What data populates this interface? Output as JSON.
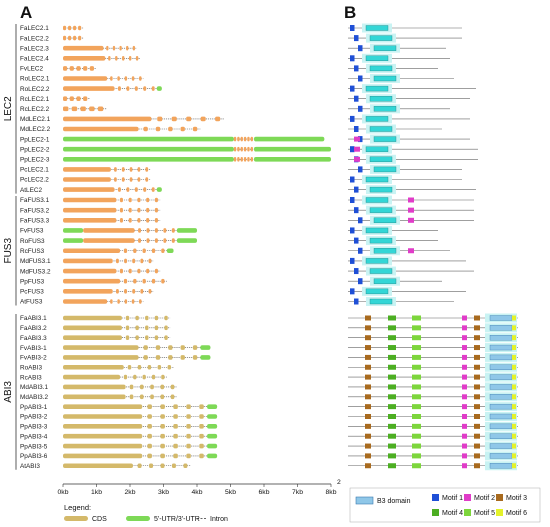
{
  "panel_a_label": "A",
  "panel_b_label": "B",
  "axis_ticks": [
    "0kb",
    "1kb",
    "2kb",
    "3kb",
    "4kb",
    "5kb",
    "6kb",
    "7kb",
    "8kb"
  ],
  "axis_end_mark": "2",
  "legend_a": {
    "title": "Legend:",
    "cds": "CDS",
    "utr": "5'-UTR/3'-UTR",
    "intron": "Intron"
  },
  "legend_b": {
    "b3": "B3 domain",
    "motifs": [
      "Motif 1",
      "Motif 2",
      "Motif 3",
      "Motif 4",
      "Motif 5",
      "Motif 6"
    ]
  },
  "colors": {
    "lec2_cds": "#f2a45c",
    "fus3_cds": "#f2a45c",
    "abi3_cds": "#d4b96a",
    "utr": "#7ed957",
    "intron": "#555555",
    "b3_fill": "#33d6d6",
    "b3_halo": "#c9f3f3",
    "motif1": "#1f4fd6",
    "motif2": "#e03cc8",
    "motif3": "#a86a1e",
    "motif4": "#4cae22",
    "motif5": "#7dd63c",
    "motif6": "#e4f22a"
  },
  "chart_data": {
    "type": "gene structure diagram",
    "x_unit": "kb",
    "xlim": [
      0,
      8
    ],
    "families": [
      {
        "name": "LEC2",
        "genes": [
          {
            "name": "FaLEC2.1",
            "cds": 0.6,
            "exons": 4,
            "utr5": 0,
            "utr3": 0
          },
          {
            "name": "FaLEC2.2",
            "cds": 0.6,
            "exons": 4,
            "utr5": 0,
            "utr3": 0
          },
          {
            "name": "FaLEC2.3",
            "cds": 2.2,
            "exons": 6,
            "utr5": 0,
            "utr3": 0
          },
          {
            "name": "FaLEC2.4",
            "cds": 2.3,
            "exons": 6,
            "utr5": 0,
            "utr3": 0
          },
          {
            "name": "FvLEC2",
            "cds": 1.0,
            "exons": 5,
            "utr5": 0,
            "utr3": 0
          },
          {
            "name": "RoLEC2.1",
            "cds": 2.4,
            "exons": 6,
            "utr5": 0,
            "utr3": 0
          },
          {
            "name": "RoLEC2.2",
            "cds": 2.8,
            "exons": 6,
            "utr5": 0,
            "utr3": 0.15
          },
          {
            "name": "RcLEC2.1",
            "cds": 0.8,
            "exons": 4,
            "utr5": 0,
            "utr3": 0
          },
          {
            "name": "RcLEC2.2",
            "cds": 1.3,
            "exons": 5,
            "utr5": 0,
            "utr3": 0
          },
          {
            "name": "MdLEC2.1",
            "cds": 4.8,
            "exons": 6,
            "utr5": 0,
            "utr3": 0
          },
          {
            "name": "MdLEC2.2",
            "cds": 4.1,
            "exons": 6,
            "utr5": 0,
            "utr3": 0
          },
          {
            "name": "PpLEC2-1",
            "cds": 0.6,
            "exons": 6,
            "utr5": 5.1,
            "utr3": 2.1
          },
          {
            "name": "PpLEC2-2",
            "cds": 0.6,
            "exons": 6,
            "utr5": 5.1,
            "utr3": 2.3
          },
          {
            "name": "PpLEC2-3",
            "cds": 0.6,
            "exons": 6,
            "utr5": 5.1,
            "utr3": 2.3
          },
          {
            "name": "PcLEC2.1",
            "cds": 2.6,
            "exons": 6,
            "utr5": 0,
            "utr3": 0
          },
          {
            "name": "PcLEC2.2",
            "cds": 2.6,
            "exons": 6,
            "utr5": 0,
            "utr3": 0
          },
          {
            "name": "AtLEC2",
            "cds": 2.8,
            "exons": 6,
            "utr5": 0,
            "utr3": 0.15
          }
        ]
      },
      {
        "name": "FUS3",
        "genes": [
          {
            "name": "FaFUS3.1",
            "cds": 2.9,
            "exons": 6,
            "utr5": 0,
            "utr3": 0
          },
          {
            "name": "FaFUS3.2",
            "cds": 2.9,
            "exons": 6,
            "utr5": 0,
            "utr3": 0
          },
          {
            "name": "FaFUS3.3",
            "cds": 2.9,
            "exons": 6,
            "utr5": 0,
            "utr3": 0
          },
          {
            "name": "FvFUS3",
            "cds": 2.8,
            "exons": 6,
            "utr5": 0.6,
            "utr3": 0.6
          },
          {
            "name": "RoFUS3",
            "cds": 2.8,
            "exons": 6,
            "utr5": 0.6,
            "utr3": 0.6
          },
          {
            "name": "RcFUS3",
            "cds": 3.1,
            "exons": 6,
            "utr5": 0,
            "utr3": 0.2
          },
          {
            "name": "MdFUS3.1",
            "cds": 2.7,
            "exons": 6,
            "utr5": 0,
            "utr3": 0
          },
          {
            "name": "MdFUS3.2",
            "cds": 2.9,
            "exons": 6,
            "utr5": 0,
            "utr3": 0
          },
          {
            "name": "PpFUS3",
            "cds": 3.1,
            "exons": 6,
            "utr5": 0,
            "utr3": 0
          },
          {
            "name": "PcFUS3",
            "cds": 2.7,
            "exons": 6,
            "utr5": 0,
            "utr3": 0
          },
          {
            "name": "AtFUS3",
            "cds": 2.4,
            "exons": 6,
            "utr5": 0,
            "utr3": 0
          }
        ]
      },
      {
        "name": "ABI3",
        "genes": [
          {
            "name": "FaABI3.1",
            "cds": 3.2,
            "exons": 6,
            "utr5": 0,
            "utr3": 0
          },
          {
            "name": "FaABI3.2",
            "cds": 3.2,
            "exons": 6,
            "utr5": 0,
            "utr3": 0
          },
          {
            "name": "FaABI3.3",
            "cds": 3.2,
            "exons": 6,
            "utr5": 0,
            "utr3": 0
          },
          {
            "name": "FvABI3-1",
            "cds": 4.1,
            "exons": 6,
            "utr5": 0,
            "utr3": 0.3
          },
          {
            "name": "FvABI3-2",
            "cds": 4.1,
            "exons": 6,
            "utr5": 0,
            "utr3": 0.3
          },
          {
            "name": "RoABI3",
            "cds": 3.3,
            "exons": 6,
            "utr5": 0,
            "utr3": 0
          },
          {
            "name": "RcABI3",
            "cds": 3.1,
            "exons": 6,
            "utr5": 0,
            "utr3": 0
          },
          {
            "name": "MdABI3.1",
            "cds": 3.4,
            "exons": 6,
            "utr5": 0,
            "utr3": 0
          },
          {
            "name": "MdABI3.2",
            "cds": 3.4,
            "exons": 6,
            "utr5": 0,
            "utr3": 0
          },
          {
            "name": "PpABI3-1",
            "cds": 4.3,
            "exons": 6,
            "utr5": 0,
            "utr3": 0.3
          },
          {
            "name": "PpABI3-2",
            "cds": 4.3,
            "exons": 6,
            "utr5": 0,
            "utr3": 0.3
          },
          {
            "name": "PpABI3-3",
            "cds": 4.3,
            "exons": 6,
            "utr5": 0,
            "utr3": 0.3
          },
          {
            "name": "PpABI3-4",
            "cds": 4.3,
            "exons": 6,
            "utr5": 0,
            "utr3": 0.3
          },
          {
            "name": "PpABI3-5",
            "cds": 4.3,
            "exons": 6,
            "utr5": 0,
            "utr3": 0.3
          },
          {
            "name": "PpABI3-6",
            "cds": 4.3,
            "exons": 6,
            "utr5": 0,
            "utr3": 0.3
          },
          {
            "name": "AtABI3",
            "cds": 3.8,
            "exons": 6,
            "utr5": 0,
            "utr3": 0
          }
        ]
      }
    ]
  }
}
